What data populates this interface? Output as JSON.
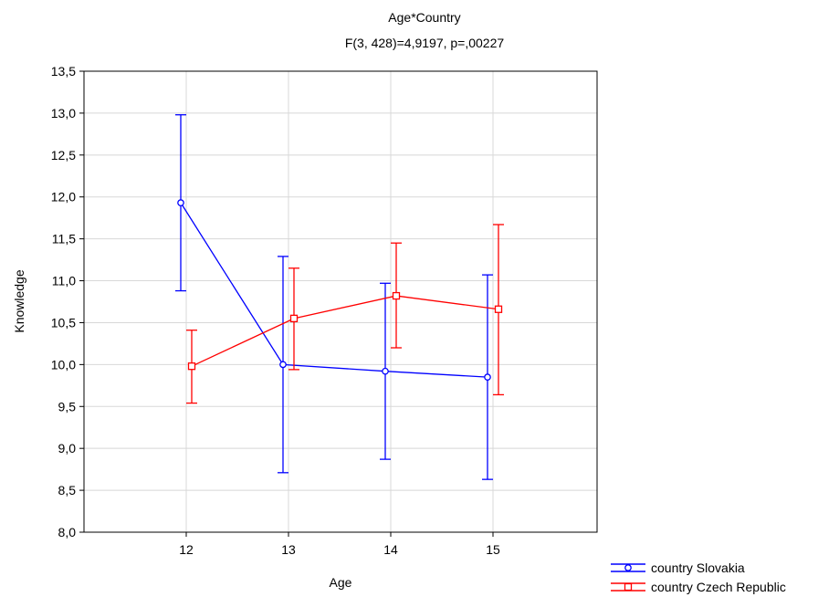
{
  "chart_data": {
    "type": "line",
    "title": "Age*Country",
    "subtitle": "F(3, 428)=4,9197, p=,00227",
    "xlabel": "Age",
    "ylabel": "Knowledge",
    "categories": [
      "12",
      "13",
      "14",
      "15"
    ],
    "ylim": [
      8.0,
      13.5
    ],
    "yticks": [
      "8,0",
      "8,5",
      "9,0",
      "9,5",
      "10,0",
      "10,5",
      "11,0",
      "11,5",
      "12,0",
      "12,5",
      "13,0",
      "13,5"
    ],
    "grid": true,
    "legend_position": "bottom-right",
    "series": [
      {
        "name": "country Slovakia",
        "color": "#0000ff",
        "marker": "circle",
        "values": [
          11.93,
          10.0,
          9.92,
          9.85
        ],
        "lower": [
          10.88,
          8.71,
          8.87,
          8.63
        ],
        "upper": [
          12.98,
          11.29,
          10.97,
          11.07
        ]
      },
      {
        "name": "country Czech Republic",
        "color": "#ff0000",
        "marker": "square",
        "values": [
          9.98,
          10.55,
          10.82,
          10.66
        ],
        "lower": [
          9.54,
          9.94,
          10.2,
          9.64
        ],
        "upper": [
          10.41,
          11.15,
          11.45,
          11.67
        ]
      }
    ]
  }
}
